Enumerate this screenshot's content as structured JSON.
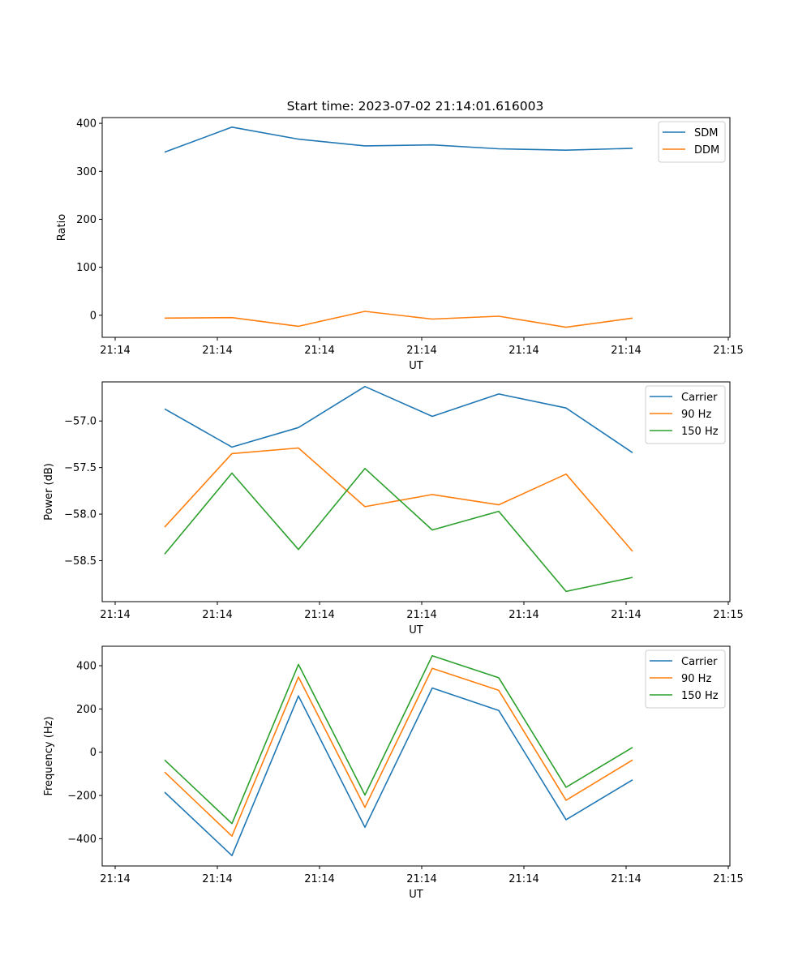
{
  "figure": {
    "title": "Start time: 2023-07-02 21:14:01.616003"
  },
  "chart_data": [
    {
      "type": "line",
      "title": "Start time: 2023-07-02 21:14:01.616003",
      "xlabel": "UT",
      "ylabel": "Ratio",
      "x_tick_labels": [
        "21:14",
        "21:14",
        "21:14",
        "21:14",
        "21:14",
        "21:14",
        "21:15"
      ],
      "y_ticks": [
        0,
        100,
        200,
        300,
        400
      ],
      "y_tick_labels": [
        "0",
        "100",
        "200",
        "300",
        "400"
      ],
      "ylim": [
        -46,
        412
      ],
      "x": [
        1,
        2,
        3,
        4,
        5,
        6,
        7,
        8
      ],
      "series": [
        {
          "name": "SDM",
          "color": "#1f77b4",
          "values": [
            340,
            392,
            367,
            353,
            355,
            347,
            344,
            348
          ]
        },
        {
          "name": "DDM",
          "color": "#ff7f0e",
          "values": [
            -6,
            -5,
            -23,
            8,
            -8,
            -2,
            -25,
            -6
          ]
        }
      ],
      "legend": "upper-right"
    },
    {
      "type": "line",
      "title": "",
      "xlabel": "UT",
      "ylabel": "Power (dB)",
      "x_tick_labels": [
        "21:14",
        "21:14",
        "21:14",
        "21:14",
        "21:14",
        "21:14",
        "21:15"
      ],
      "y_ticks": [
        -58.5,
        -58.0,
        -57.5,
        -57.0
      ],
      "y_tick_labels": [
        "−58.5",
        "−58.0",
        "−57.5",
        "−57.0"
      ],
      "ylim": [
        -58.94,
        -56.58
      ],
      "x": [
        1,
        2,
        3,
        4,
        5,
        6,
        7,
        8
      ],
      "series": [
        {
          "name": "Carrier",
          "color": "#1f77b4",
          "values": [
            -56.87,
            -57.28,
            -57.07,
            -56.63,
            -56.95,
            -56.71,
            -56.86,
            -57.34
          ]
        },
        {
          "name": "90 Hz",
          "color": "#ff7f0e",
          "values": [
            -58.14,
            -57.35,
            -57.29,
            -57.92,
            -57.79,
            -57.9,
            -57.57,
            -58.4
          ]
        },
        {
          "name": "150 Hz",
          "color": "#2ca02c",
          "values": [
            -58.43,
            -57.56,
            -58.38,
            -57.51,
            -58.17,
            -57.97,
            -58.83,
            -58.68
          ]
        }
      ],
      "legend": "upper-right"
    },
    {
      "type": "line",
      "title": "",
      "xlabel": "UT",
      "ylabel": "Frequency (Hz)",
      "x_tick_labels": [
        "21:14",
        "21:14",
        "21:14",
        "21:14",
        "21:14",
        "21:14",
        "21:15"
      ],
      "y_ticks": [
        -400,
        -200,
        0,
        200,
        400
      ],
      "y_tick_labels": [
        "−400",
        "−200",
        "0",
        "200",
        "400"
      ],
      "ylim": [
        -526,
        490
      ],
      "x": [
        1,
        2,
        3,
        4,
        5,
        6,
        7,
        8
      ],
      "series": [
        {
          "name": "Carrier",
          "color": "#1f77b4",
          "values": [
            -185,
            -478,
            260,
            -347,
            297,
            193,
            -312,
            -128
          ]
        },
        {
          "name": "90 Hz",
          "color": "#ff7f0e",
          "values": [
            -92,
            -388,
            348,
            -255,
            388,
            286,
            -222,
            -36
          ]
        },
        {
          "name": "150 Hz",
          "color": "#2ca02c",
          "values": [
            -36,
            -330,
            406,
            -198,
            446,
            344,
            -162,
            22
          ]
        }
      ],
      "legend": "upper-right"
    }
  ]
}
